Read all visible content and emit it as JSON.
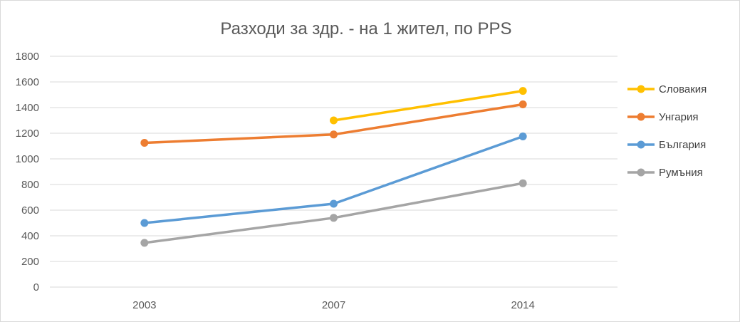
{
  "chart_data": {
    "type": "line",
    "title": "Разходи за здр. - на 1 жител, по PPS",
    "categories": [
      "2003",
      "2007",
      "2014"
    ],
    "ylim": [
      0,
      1800
    ],
    "yticks": [
      0,
      200,
      400,
      600,
      800,
      1000,
      1200,
      1400,
      1600,
      1800
    ],
    "grid": true,
    "legend_position": "right",
    "series": [
      {
        "name": "Словакия",
        "color": "#FFC000",
        "values": [
          null,
          1300,
          1530
        ]
      },
      {
        "name": "Унгария",
        "color": "#ED7D31",
        "values": [
          1125,
          1190,
          1425
        ]
      },
      {
        "name": "България",
        "color": "#5B9BD5",
        "values": [
          500,
          650,
          1175
        ]
      },
      {
        "name": "Румъния",
        "color": "#A5A5A5",
        "values": [
          345,
          540,
          810
        ]
      }
    ]
  }
}
